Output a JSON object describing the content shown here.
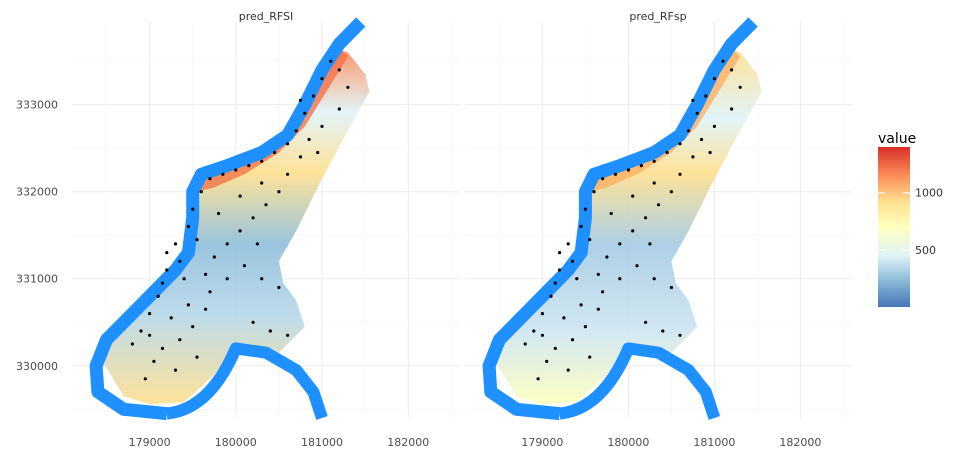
{
  "chart_data": {
    "type": "heatmap",
    "facets": [
      {
        "title": "pred_RFSI"
      },
      {
        "title": "pred_RFsp"
      }
    ],
    "x_ticks": [
      179000,
      180000,
      181000,
      182000
    ],
    "y_ticks": [
      330000,
      331000,
      332000,
      333000
    ],
    "xlim": [
      178100,
      182600
    ],
    "ylim": [
      329400,
      333950
    ],
    "legend": {
      "title": "value",
      "ticks": [
        1000,
        500
      ],
      "range": [
        0,
        1400
      ],
      "colors": [
        "#4575b4",
        "#91bfdb",
        "#e0f3f8",
        "#ffffbf",
        "#fee090",
        "#fc8d59",
        "#d73027"
      ],
      "position": "right"
    },
    "river_color": "#1e90ff",
    "point_color": "#000000",
    "river_path": [
      [
        179200,
        329450
      ],
      [
        178700,
        329500
      ],
      [
        178400,
        329700
      ],
      [
        178380,
        330000
      ],
      [
        178500,
        330300
      ],
      [
        178800,
        330600
      ],
      [
        179100,
        330900
      ],
      [
        179300,
        331100
      ],
      [
        179450,
        331300
      ],
      [
        179500,
        331700
      ],
      [
        179500,
        332000
      ],
      [
        179600,
        332200
      ],
      [
        179900,
        332300
      ],
      [
        180300,
        332450
      ],
      [
        180600,
        332650
      ],
      [
        180800,
        333000
      ],
      [
        181000,
        333400
      ],
      [
        181200,
        333700
      ],
      [
        181450,
        333950
      ]
    ],
    "river_lower": [
      [
        180000,
        330200
      ],
      [
        180350,
        330150
      ],
      [
        180700,
        329950
      ],
      [
        180900,
        329700
      ],
      [
        181000,
        329400
      ]
    ],
    "points": [
      [
        178800,
        330250
      ],
      [
        178900,
        330400
      ],
      [
        179000,
        330600
      ],
      [
        179100,
        330800
      ],
      [
        179150,
        330950
      ],
      [
        179200,
        331100
      ],
      [
        179350,
        331200
      ],
      [
        179300,
        331400
      ],
      [
        179450,
        331600
      ],
      [
        179500,
        331800
      ],
      [
        179600,
        332000
      ],
      [
        179700,
        332150
      ],
      [
        179850,
        332200
      ],
      [
        180000,
        332250
      ],
      [
        180150,
        332300
      ],
      [
        180300,
        332350
      ],
      [
        180450,
        332450
      ],
      [
        180600,
        332550
      ],
      [
        180700,
        332700
      ],
      [
        180800,
        332900
      ],
      [
        180900,
        333100
      ],
      [
        181000,
        333300
      ],
      [
        181100,
        333500
      ],
      [
        181200,
        333400
      ],
      [
        181300,
        333200
      ],
      [
        181200,
        332950
      ],
      [
        181000,
        332750
      ],
      [
        180850,
        332600
      ],
      [
        180750,
        332400
      ],
      [
        180600,
        332200
      ],
      [
        180500,
        332000
      ],
      [
        180350,
        331850
      ],
      [
        180200,
        331700
      ],
      [
        180050,
        331550
      ],
      [
        179900,
        331400
      ],
      [
        179750,
        331250
      ],
      [
        179650,
        331050
      ],
      [
        179700,
        330850
      ],
      [
        179650,
        330650
      ],
      [
        179500,
        330450
      ],
      [
        179350,
        330300
      ],
      [
        179150,
        330200
      ],
      [
        179000,
        330350
      ],
      [
        179250,
        330550
      ],
      [
        179450,
        330700
      ],
      [
        179900,
        331000
      ],
      [
        180100,
        331150
      ],
      [
        180300,
        331000
      ],
      [
        180500,
        330900
      ],
      [
        180200,
        330500
      ],
      [
        180400,
        330400
      ],
      [
        180600,
        330350
      ],
      [
        179050,
        330050
      ],
      [
        179300,
        329950
      ],
      [
        178950,
        329850
      ],
      [
        179550,
        330100
      ],
      [
        180750,
        333050
      ],
      [
        180950,
        332450
      ],
      [
        180250,
        331400
      ],
      [
        179800,
        331750
      ],
      [
        180050,
        331950
      ],
      [
        180300,
        332100
      ],
      [
        179200,
        331300
      ],
      [
        179400,
        331000
      ],
      [
        179550,
        331450
      ]
    ],
    "legend_pos": "right"
  }
}
